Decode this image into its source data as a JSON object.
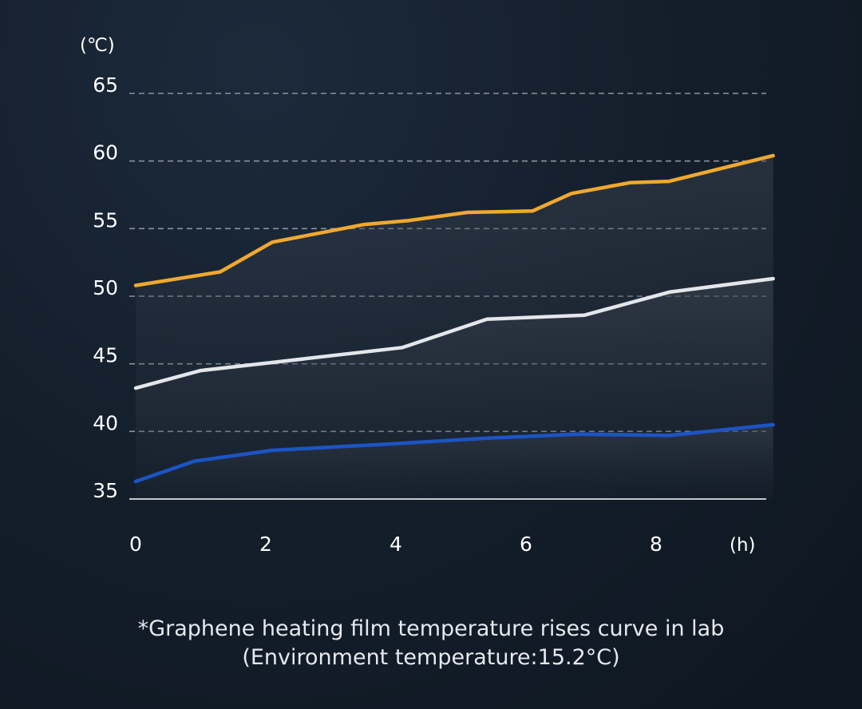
{
  "chart_data": {
    "type": "area",
    "y_unit": "(℃)",
    "x_unit": "(h)",
    "y_ticks": [
      35,
      40,
      45,
      50,
      55,
      60,
      65
    ],
    "x_ticks": [
      0,
      2,
      4,
      6,
      8
    ],
    "ylim": [
      35,
      65
    ],
    "xlim": [
      0,
      9.8
    ],
    "grid": "horizontal-dashed",
    "series": [
      {
        "color": "#f0a830",
        "x": [
          0,
          1.3,
          2.1,
          3.5,
          4.2,
          5.1,
          6.1,
          6.7,
          7.6,
          8.2,
          9.8
        ],
        "values": [
          50.8,
          51.8,
          54.0,
          55.3,
          55.6,
          56.2,
          56.3,
          57.6,
          58.4,
          58.5,
          60.4
        ]
      },
      {
        "color": "#e4e6ea",
        "x": [
          0,
          1.0,
          2.1,
          4.1,
          5.4,
          6.9,
          8.2,
          9.8
        ],
        "values": [
          43.2,
          44.5,
          45.1,
          46.2,
          48.3,
          48.6,
          50.3,
          51.3
        ]
      },
      {
        "color": "#1c54c4",
        "x": [
          0,
          0.9,
          2.1,
          4.0,
          5.4,
          6.8,
          8.2,
          9.8
        ],
        "values": [
          36.3,
          37.8,
          38.6,
          39.1,
          39.5,
          39.8,
          39.7,
          40.5
        ]
      }
    ]
  },
  "caption": {
    "line1": "*Graphene heating film temperature rises curve in lab",
    "line2": "(Environment temperature:15.2°C)"
  }
}
